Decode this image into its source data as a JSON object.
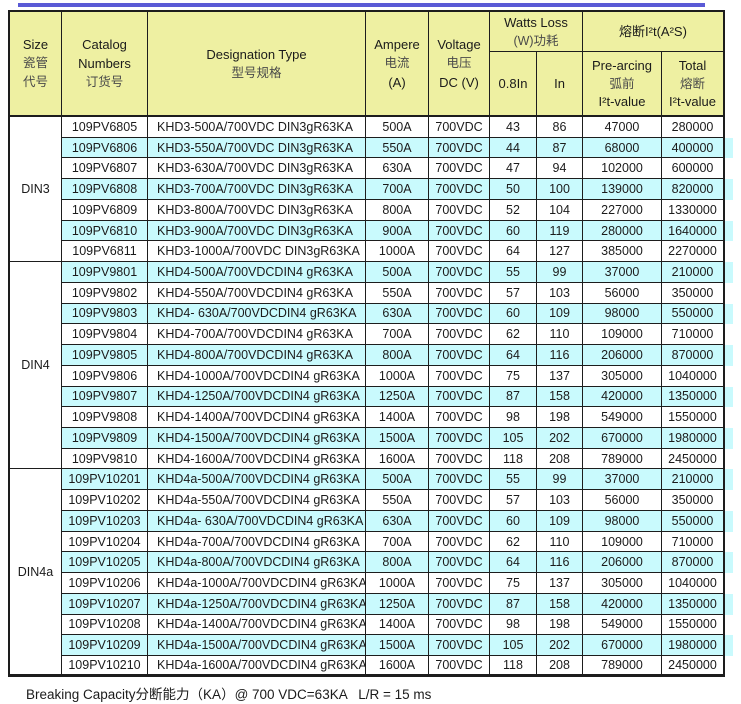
{
  "colors": {
    "accent_line": "#5a5ad6",
    "header_bg": "#eef0a2",
    "stripe_bg": "#c9fafd",
    "grid_border": "#1d1d1d"
  },
  "table": {
    "headers": {
      "size": {
        "en": "Size",
        "cn1": "瓷管",
        "cn2": "代号"
      },
      "catalog": {
        "en1": "Catalog",
        "en2": "Numbers",
        "cn": "订货号"
      },
      "designation": {
        "en": "Designation Type",
        "cn": "型号规格"
      },
      "ampere": {
        "en": "Ampere",
        "cn": "电流",
        "unit": "(A)"
      },
      "voltage": {
        "en": "Voltage",
        "cn": "电压",
        "unit": "DC (V)"
      },
      "watts_loss": {
        "en": "Watts Loss",
        "cn": "(W)功耗",
        "sub_08": "0.8In",
        "sub_in": "In"
      },
      "i2t": {
        "title": "熔断I²t(A²S)",
        "prearcing": {
          "en": "Pre-arcing",
          "cn": "弧前",
          "val": "I²t-value"
        },
        "total": {
          "en": "Total",
          "cn": "熔断",
          "val": "I²t-value"
        }
      }
    },
    "groups": [
      {
        "size": "DIN3",
        "rows": [
          [
            "109PV6805",
            "KHD3-500A/700VDC DIN3gR63KA",
            "500A",
            "700VDC",
            "43",
            "86",
            "47000",
            "280000"
          ],
          [
            "109PV6806",
            "KHD3-550A/700VDC DIN3gR63KA",
            "550A",
            "700VDC",
            "44",
            "87",
            "68000",
            "400000"
          ],
          [
            "109PV6807",
            "KHD3-630A/700VDC DIN3gR63KA",
            "630A",
            "700VDC",
            "47",
            "94",
            "102000",
            "600000"
          ],
          [
            "109PV6808",
            "KHD3-700A/700VDC DIN3gR63KA",
            "700A",
            "700VDC",
            "50",
            "100",
            "139000",
            "820000"
          ],
          [
            "109PV6809",
            "KHD3-800A/700VDC DIN3gR63KA",
            "800A",
            "700VDC",
            "52",
            "104",
            "227000",
            "1330000"
          ],
          [
            "109PV6810",
            "KHD3-900A/700VDC DIN3gR63KA",
            "900A",
            "700VDC",
            "60",
            "119",
            "280000",
            "1640000"
          ],
          [
            "109PV6811",
            "KHD3-1000A/700VDC DIN3gR63KA",
            "1000A",
            "700VDC",
            "64",
            "127",
            "385000",
            "2270000"
          ]
        ]
      },
      {
        "size": "DIN4",
        "rows": [
          [
            "109PV9801",
            "KHD4-500A/700VDCDIN4 gR63KA",
            "500A",
            "700VDC",
            "55",
            "99",
            "37000",
            "210000"
          ],
          [
            "109PV9802",
            "KHD4-550A/700VDCDIN4 gR63KA",
            "550A",
            "700VDC",
            "57",
            "103",
            "56000",
            "350000"
          ],
          [
            "109PV9803",
            "KHD4- 630A/700VDCDIN4 gR63KA",
            "630A",
            "700VDC",
            "60",
            "109",
            "98000",
            "550000"
          ],
          [
            "109PV9804",
            "KHD4-700A/700VDCDIN4 gR63KA",
            "700A",
            "700VDC",
            "62",
            "110",
            "109000",
            "710000"
          ],
          [
            "109PV9805",
            "KHD4-800A/700VDCDIN4 gR63KA",
            "800A",
            "700VDC",
            "64",
            "116",
            "206000",
            "870000"
          ],
          [
            "109PV9806",
            "KHD4-1000A/700VDCDIN4 gR63KA",
            "1000A",
            "700VDC",
            "75",
            "137",
            "305000",
            "1040000"
          ],
          [
            "109PV9807",
            "KHD4-1250A/700VDCDIN4 gR63KA",
            "1250A",
            "700VDC",
            "87",
            "158",
            "420000",
            "1350000"
          ],
          [
            "109PV9808",
            "KHD4-1400A/700VDCDIN4 gR63KA",
            "1400A",
            "700VDC",
            "98",
            "198",
            "549000",
            "1550000"
          ],
          [
            "109PV9809",
            "KHD4-1500A/700VDCDIN4 gR63KA",
            "1500A",
            "700VDC",
            "105",
            "202",
            "670000",
            "1980000"
          ],
          [
            "109PV9810",
            "KHD4-1600A/700VDCDIN4 gR63KA",
            "1600A",
            "700VDC",
            "118",
            "208",
            "789000",
            "2450000"
          ]
        ]
      },
      {
        "size": "DIN4a",
        "rows": [
          [
            "109PV10201",
            "KHD4a-500A/700VDCDIN4 gR63KA",
            "500A",
            "700VDC",
            "55",
            "99",
            "37000",
            "210000"
          ],
          [
            "109PV10202",
            "KHD4a-550A/700VDCDIN4 gR63KA",
            "550A",
            "700VDC",
            "57",
            "103",
            "56000",
            "350000"
          ],
          [
            "109PV10203",
            "KHD4a- 630A/700VDCDIN4 gR63KA",
            "630A",
            "700VDC",
            "60",
            "109",
            "98000",
            "550000"
          ],
          [
            "109PV10204",
            "KHD4a-700A/700VDCDIN4 gR63KA",
            "700A",
            "700VDC",
            "62",
            "110",
            "109000",
            "710000"
          ],
          [
            "109PV10205",
            "KHD4a-800A/700VDCDIN4 gR63KA",
            "800A",
            "700VDC",
            "64",
            "116",
            "206000",
            "870000"
          ],
          [
            "109PV10206",
            "KHD4a-1000A/700VDCDIN4 gR63KA",
            "1000A",
            "700VDC",
            "75",
            "137",
            "305000",
            "1040000"
          ],
          [
            "109PV10207",
            "KHD4a-1250A/700VDCDIN4 gR63KA",
            "1250A",
            "700VDC",
            "87",
            "158",
            "420000",
            "1350000"
          ],
          [
            "109PV10208",
            "KHD4a-1400A/700VDCDIN4 gR63KA",
            "1400A",
            "700VDC",
            "98",
            "198",
            "549000",
            "1550000"
          ],
          [
            "109PV10209",
            "KHD4a-1500A/700VDCDIN4 gR63KA",
            "1500A",
            "700VDC",
            "105",
            "202",
            "670000",
            "1980000"
          ],
          [
            "109PV10210",
            "KHD4a-1600A/700VDCDIN4 gR63KA",
            "1600A",
            "700VDC",
            "118",
            "208",
            "789000",
            "2450000"
          ]
        ]
      }
    ]
  },
  "footer": {
    "text": "Breaking Capacity分断能力（KA）@ 700 VDC=63KA   L/R = 15 ms"
  }
}
